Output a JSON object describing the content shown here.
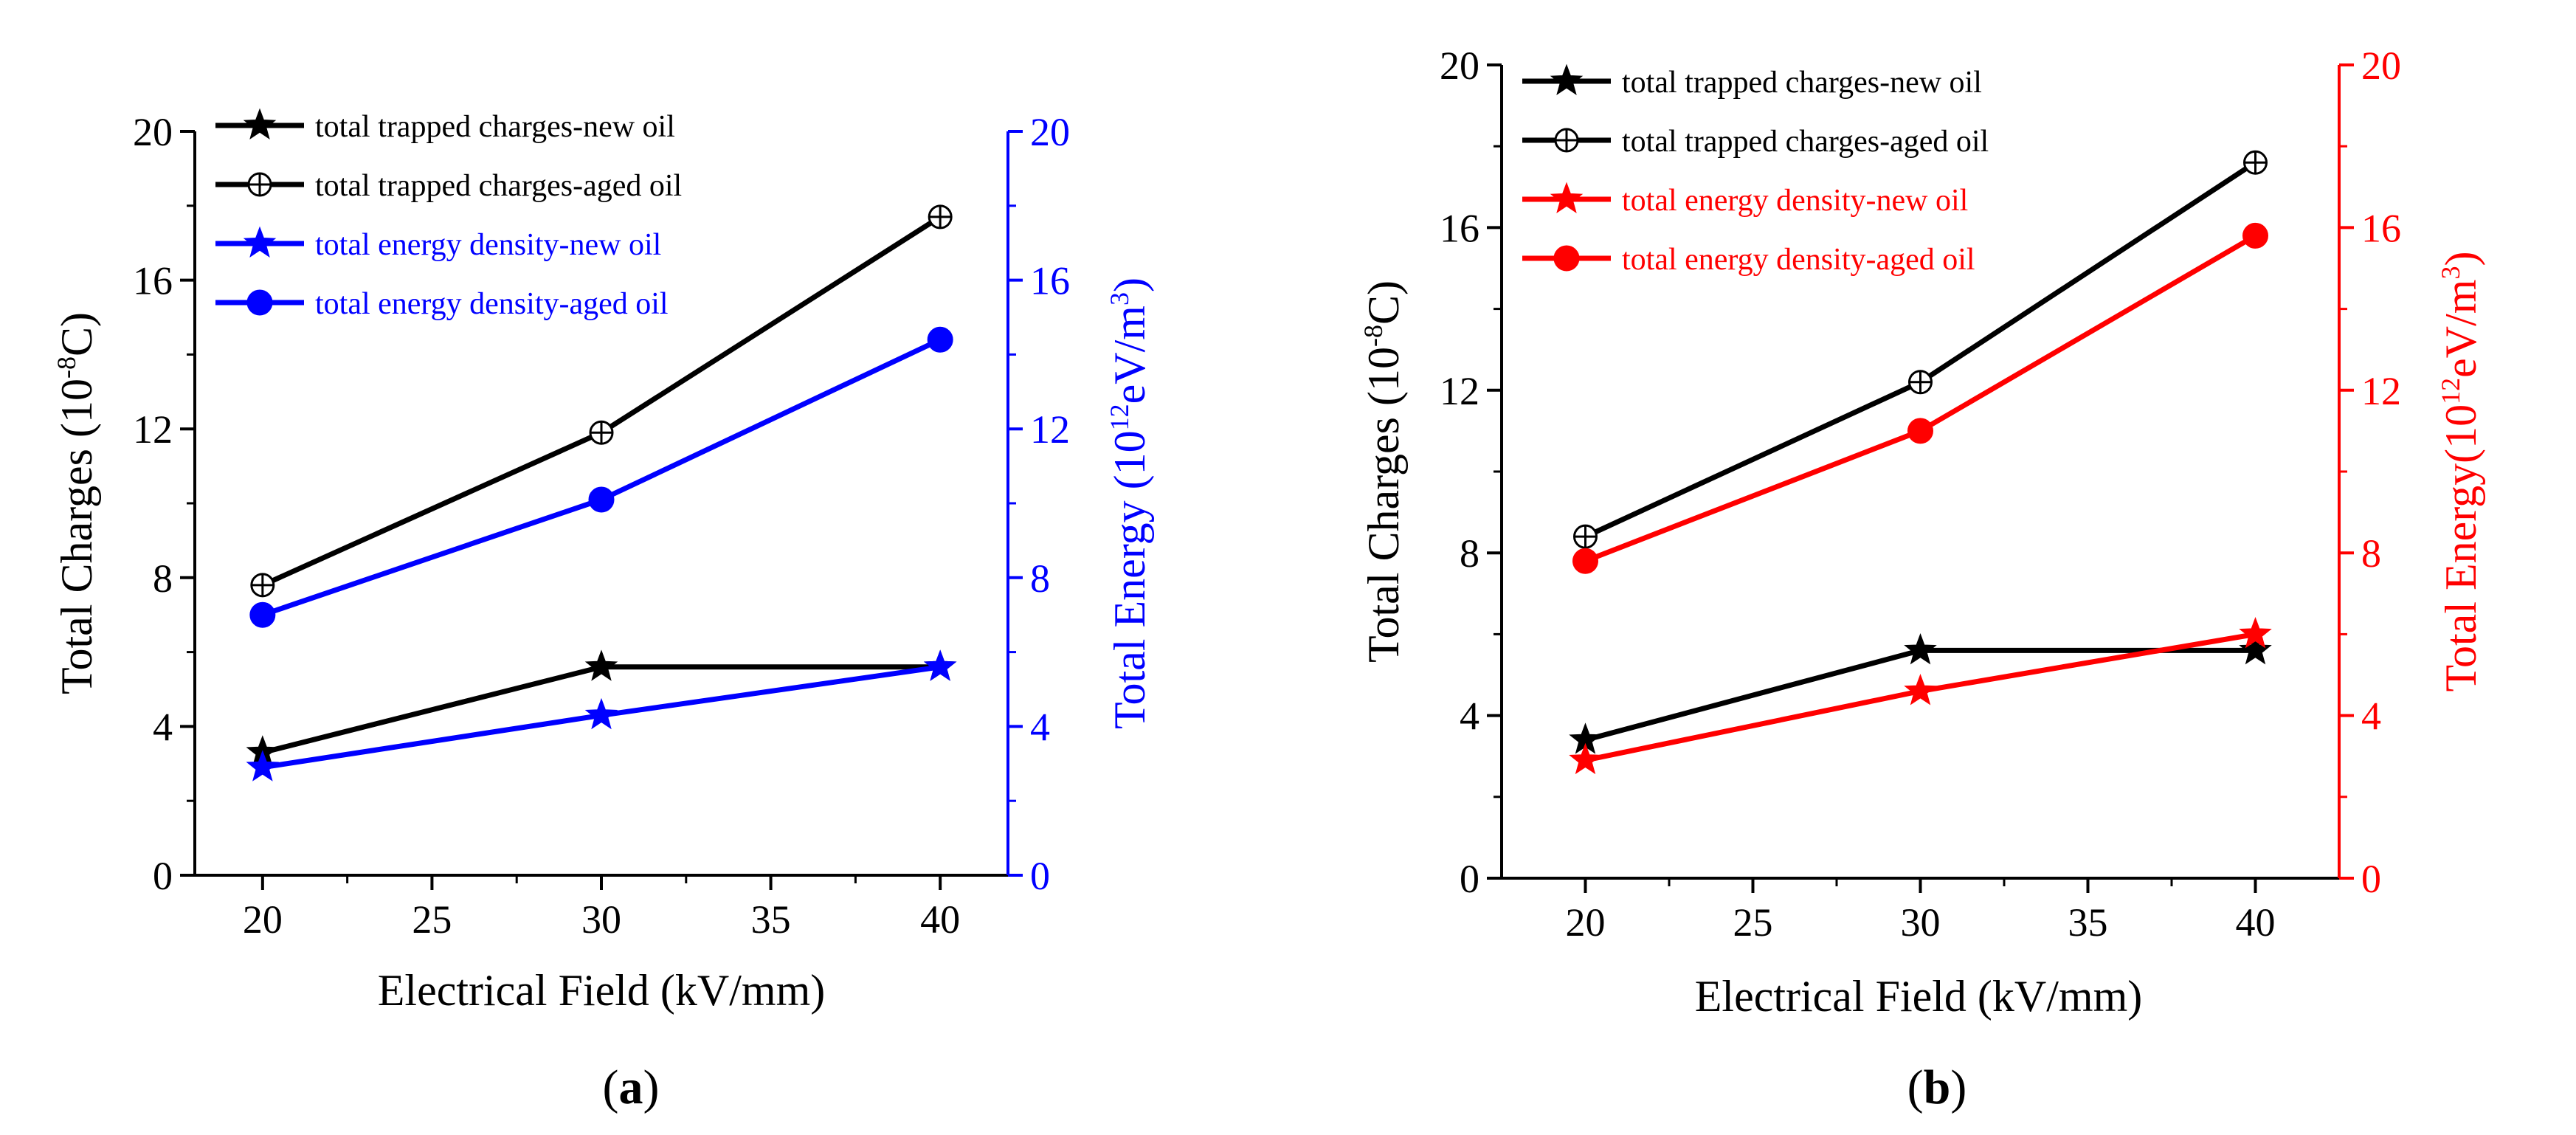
{
  "chart_data": [
    {
      "type": "line",
      "panel_label": "(a)",
      "panel_letter": "a",
      "xlabel": "Electrical Field (kV/mm)",
      "ylabel": "Total Charges (10",
      "ylabel_sup": "-8",
      "ylabel_tail": "C)",
      "y2label": "Total Energy (10",
      "y2label_sup1": "12",
      "y2label_mid": "eV/m",
      "y2label_sup2": "3",
      "y2label_tail": ")",
      "xlim": [
        18,
        42
      ],
      "ylim": [
        0,
        20
      ],
      "y2lim": [
        0,
        20
      ],
      "x": [
        20,
        30,
        40
      ],
      "x_ticks": [
        20,
        25,
        30,
        35,
        40
      ],
      "x_tick_labels": [
        "20",
        "25",
        "30",
        "35",
        "40"
      ],
      "y_ticks": [
        0,
        4,
        8,
        12,
        16,
        20
      ],
      "y_tick_labels": [
        "0",
        "4",
        "8",
        "12",
        "16",
        "20"
      ],
      "y2_ticks": [
        0,
        4,
        8,
        12,
        16,
        20
      ],
      "y2_tick_labels": [
        "0",
        "4",
        "8",
        "12",
        "16",
        "20"
      ],
      "axis_color": "#000000",
      "y2_axis_color": "#0000ff",
      "legend_position": "top-left",
      "series": [
        {
          "name": "total trapped charges-new oil",
          "axis": "left",
          "color": "#000000",
          "marker": "star",
          "values": [
            3.3,
            5.6,
            5.6
          ]
        },
        {
          "name": "total trapped charges-aged oil",
          "axis": "left",
          "color": "#000000",
          "marker": "circle-plus",
          "values": [
            7.8,
            11.9,
            17.7
          ]
        },
        {
          "name": "total energy density-new oil",
          "axis": "right",
          "color": "#0000ff",
          "marker": "star",
          "values": [
            2.9,
            4.3,
            5.6
          ]
        },
        {
          "name": "total energy density-aged oil",
          "axis": "right",
          "color": "#0000ff",
          "marker": "circle",
          "values": [
            7.0,
            10.1,
            14.4
          ]
        }
      ]
    },
    {
      "type": "line",
      "panel_label": "(b)",
      "panel_letter": "b",
      "xlabel": "Electrical Field (kV/mm)",
      "ylabel": "Total Charges (10",
      "ylabel_sup": "-8",
      "ylabel_tail": "C)",
      "y2label": "Total Energy(10",
      "y2label_sup1": "12",
      "y2label_mid": "eV/m",
      "y2label_sup2": "3",
      "y2label_tail": ")",
      "xlim": [
        17.5,
        42.5
      ],
      "ylim": [
        0,
        20
      ],
      "y2lim": [
        0,
        20
      ],
      "x": [
        20,
        30,
        40
      ],
      "x_ticks": [
        20,
        25,
        30,
        35,
        40
      ],
      "x_tick_labels": [
        "20",
        "25",
        "30",
        "35",
        "40"
      ],
      "y_ticks": [
        0,
        4,
        8,
        12,
        16,
        20
      ],
      "y_tick_labels": [
        "0",
        "4",
        "8",
        "12",
        "16",
        "20"
      ],
      "y2_ticks": [
        0,
        4,
        8,
        12,
        16,
        20
      ],
      "y2_tick_labels": [
        "0",
        "4",
        "8",
        "12",
        "16",
        "20"
      ],
      "axis_color": "#000000",
      "y2_axis_color": "#ff0000",
      "legend_position": "top-left",
      "series": [
        {
          "name": "total trapped charges-new oil",
          "axis": "left",
          "color": "#000000",
          "marker": "star",
          "values": [
            3.4,
            5.6,
            5.6
          ]
        },
        {
          "name": "total trapped charges-aged oil",
          "axis": "left",
          "color": "#000000",
          "marker": "circle-plus",
          "values": [
            8.4,
            12.2,
            17.6
          ]
        },
        {
          "name": "total energy density-new oil",
          "axis": "right",
          "color": "#ff0000",
          "marker": "star",
          "values": [
            2.9,
            4.6,
            6.0
          ]
        },
        {
          "name": "total energy density-aged oil",
          "axis": "right",
          "color": "#ff0000",
          "marker": "circle",
          "values": [
            7.8,
            11.0,
            15.8
          ]
        }
      ]
    }
  ]
}
